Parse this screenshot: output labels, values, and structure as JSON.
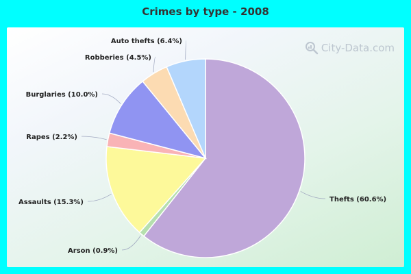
{
  "chart_data": {
    "type": "pie",
    "title": "Crimes by type - 2008",
    "slices": [
      {
        "label": "Thefts",
        "value": 60.6,
        "display": "Thefts (60.6%)",
        "color": "#bfa7d9"
      },
      {
        "label": "Arson",
        "value": 0.9,
        "display": "Arson (0.9%)",
        "color": "#b5dfae"
      },
      {
        "label": "Assaults",
        "value": 15.3,
        "display": "Assaults (15.3%)",
        "color": "#fdf99a"
      },
      {
        "label": "Rapes",
        "value": 2.2,
        "display": "Rapes (2.2%)",
        "color": "#f9b3b6"
      },
      {
        "label": "Burglaries",
        "value": 10.0,
        "display": "Burglaries (10.0%)",
        "color": "#9094f2"
      },
      {
        "label": "Robberies",
        "value": 4.5,
        "display": "Robberies (4.5%)",
        "color": "#fcdbb2"
      },
      {
        "label": "Auto thefts",
        "value": 6.4,
        "display": "Auto thefts (6.4%)",
        "color": "#b3d6fc"
      }
    ]
  },
  "watermark": {
    "text": "City-Data.com",
    "icon": "magnifier-icon"
  },
  "colors": {
    "page_background": "#00ffff",
    "leader_line": "#a0a8c0"
  }
}
